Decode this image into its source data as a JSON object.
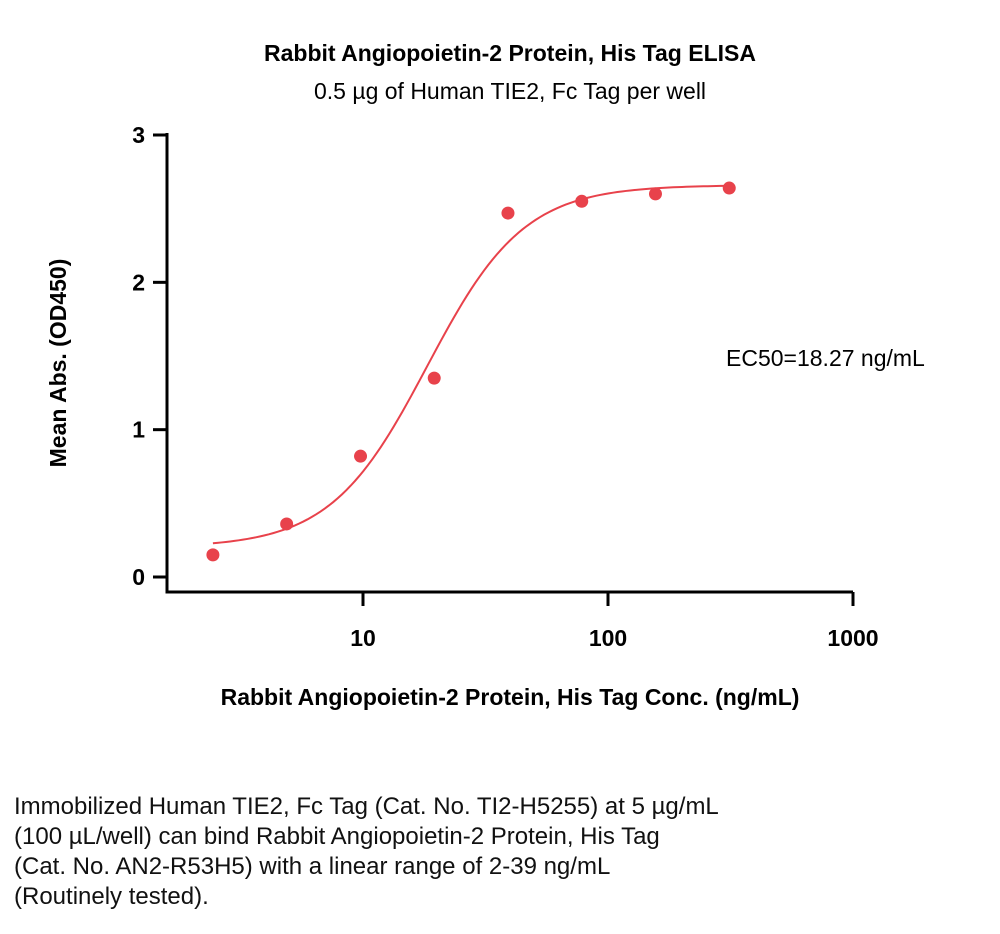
{
  "chart_data": {
    "type": "scatter",
    "title": "Rabbit Angiopoietin-2 Protein, His Tag ELISA",
    "subtitle": "0.5 µg of Human TIE2, Fc Tag per well",
    "xlabel": "Rabbit Angiopoietin-2 Protein, His Tag Conc. (ng/mL)",
    "ylabel": "Mean Abs. (OD450)",
    "xscale": "log",
    "xlim": [
      1.5,
      1000
    ],
    "ylim": [
      0,
      3
    ],
    "xticks": [
      10,
      100,
      1000
    ],
    "xtick_labels": [
      "10",
      "100",
      "1000"
    ],
    "yticks": [
      0,
      1,
      2,
      3
    ],
    "ytick_labels": [
      "0",
      "1",
      "2",
      "3"
    ],
    "grid": false,
    "color": "#e8424b",
    "points": {
      "x": [
        2.44,
        4.88,
        9.77,
        19.53,
        39.06,
        78.13,
        156.25,
        312.5
      ],
      "y": [
        0.15,
        0.36,
        0.82,
        1.35,
        2.47,
        2.55,
        2.6,
        2.64
      ]
    },
    "fit": {
      "model": "4PL",
      "bottom": 0.2,
      "top": 2.66,
      "ec50": 18.27,
      "hill": 2.2
    },
    "annotation": "EC50=18.27 ng/mL"
  },
  "caption": {
    "lines": [
      "Immobilized Human TIE2, Fc Tag (Cat. No. TI2-H5255) at 5 µg/mL",
      "(100 µL/well) can bind Rabbit Angiopoietin-2 Protein, His Tag",
      "(Cat. No. AN2-R53H5) with a linear range of 2-39 ng/mL",
      "(Routinely tested)."
    ]
  }
}
